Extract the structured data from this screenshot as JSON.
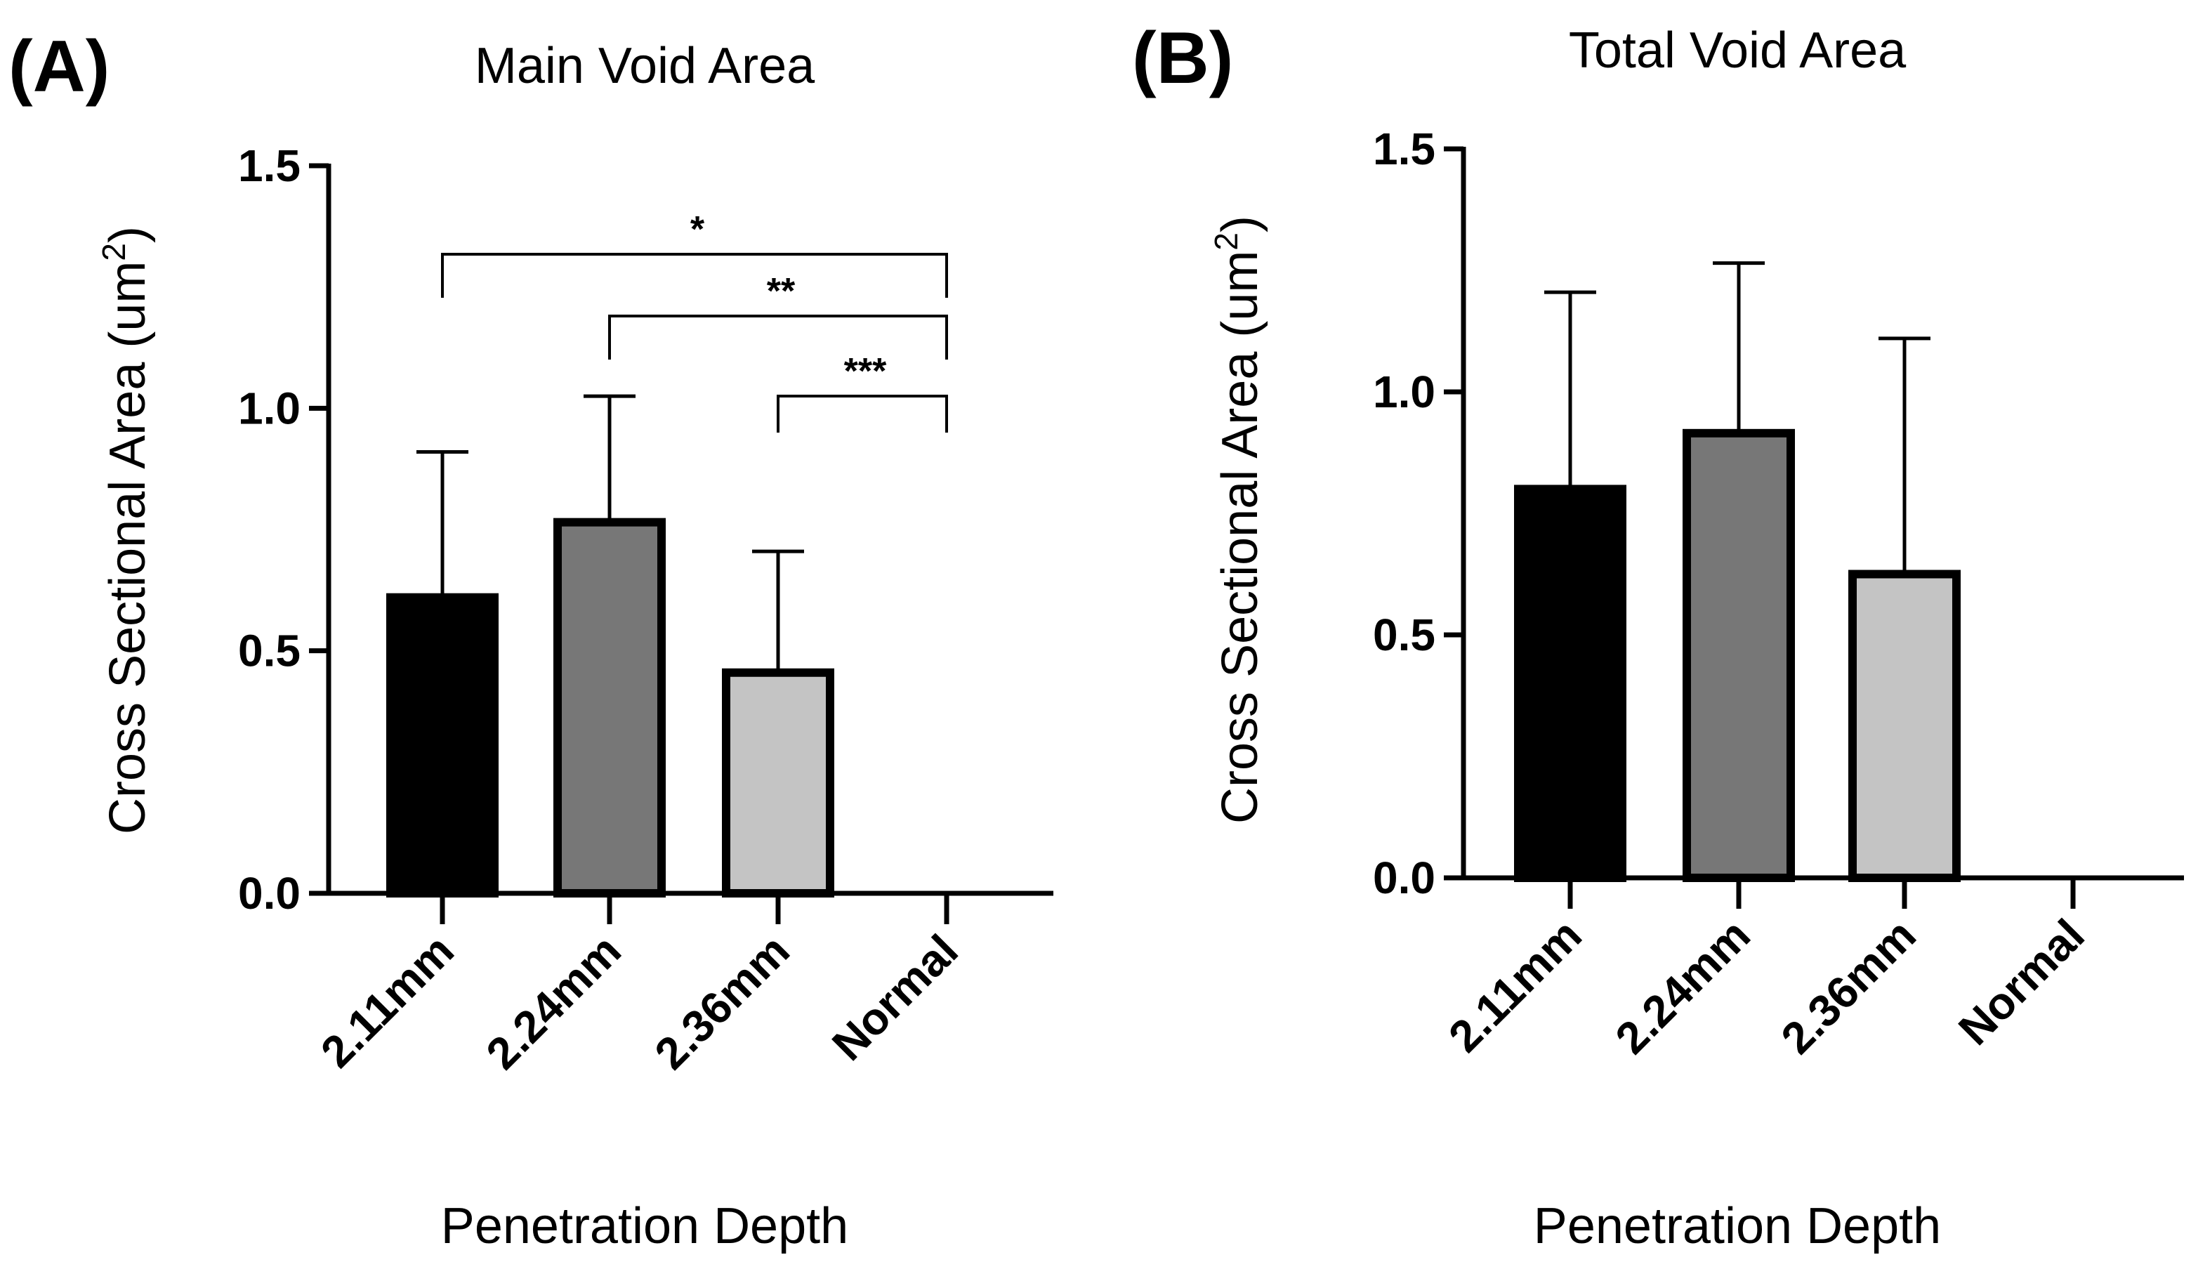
{
  "chart_data": [
    {
      "panel": "(A)",
      "type": "bar",
      "title": "Main Void Area",
      "xlabel": "Penetration Depth",
      "ylabel": "Cross Sectional Area (um",
      "ylabel_sup": "2",
      "ylabel_end": ")",
      "ylim": [
        0,
        1.5
      ],
      "yticks": [
        "0.0",
        "0.5",
        "1.0",
        "1.5"
      ],
      "categories": [
        "2.11mm",
        "2.24mm",
        "2.36mm",
        "Normal"
      ],
      "values": [
        0.61,
        0.765,
        0.455,
        0.0
      ],
      "error_upper": [
        0.91,
        1.025,
        0.705,
        0.0
      ],
      "colors": [
        "#000000",
        "#777777",
        "#c4c4c4",
        "#ffffff"
      ],
      "significance": [
        {
          "from": 0,
          "to": 3,
          "label": "*"
        },
        {
          "from": 1,
          "to": 3,
          "label": "**"
        },
        {
          "from": 2,
          "to": 3,
          "label": "***"
        }
      ]
    },
    {
      "panel": "(B)",
      "type": "bar",
      "title": "Total Void Area",
      "xlabel": "Penetration Depth",
      "ylabel": "Cross Sectional Area (um",
      "ylabel_sup": "2",
      "ylabel_end": ")",
      "ylim": [
        0,
        1.5
      ],
      "yticks": [
        "0.0",
        "0.5",
        "1.0",
        "1.5"
      ],
      "categories": [
        "2.11mm",
        "2.24mm",
        "2.36mm",
        "Normal"
      ],
      "values": [
        0.8,
        0.915,
        0.625,
        0.0
      ],
      "error_upper": [
        1.205,
        1.265,
        1.11,
        0.0
      ],
      "colors": [
        "#000000",
        "#777777",
        "#c4c4c4",
        "#ffffff"
      ],
      "significance": []
    }
  ]
}
